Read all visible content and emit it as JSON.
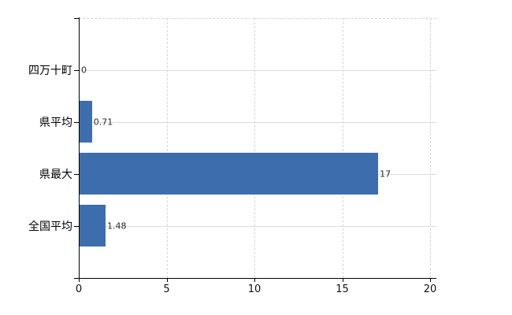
{
  "chart_data": {
    "type": "bar",
    "orientation": "horizontal",
    "title": "",
    "xlabel": "",
    "ylabel": "",
    "categories": [
      "四万十町",
      "県平均",
      "県最大",
      "全国平均"
    ],
    "values": [
      0,
      0.71,
      17,
      1.48
    ],
    "value_labels": [
      "0",
      "0.71",
      "17",
      "1.48"
    ],
    "x_ticks": [
      0,
      5,
      10,
      15,
      20
    ],
    "x_tick_labels": [
      "0",
      "5",
      "10",
      "15",
      "20"
    ],
    "xlim": [
      0,
      20.36
    ],
    "grid": true,
    "grid_horizontal_style": "solid",
    "grid_vertical_style": "dashed",
    "legend": false,
    "colors": {
      "bar": "#3d6dad",
      "axis": "#000000",
      "grid": "#d9d9d9",
      "value_label": "#2b2b2b",
      "tick_label": "#111111",
      "background": "#ffffff"
    }
  }
}
